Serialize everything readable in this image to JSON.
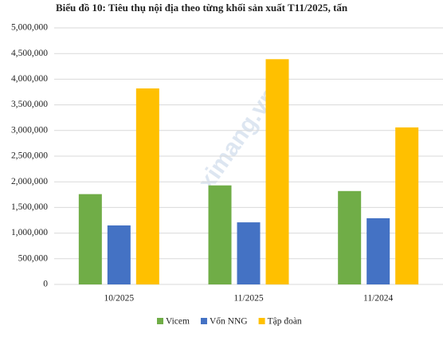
{
  "chart_data": {
    "type": "bar",
    "title": "Biểu đồ 10: Tiêu thụ nội địa theo từng khối sản xuất T11/2025, tấn",
    "watermark": "ximang.vn",
    "categories": [
      "10/2025",
      "11/2025",
      "11/2024"
    ],
    "series": [
      {
        "name": "Vicem",
        "color": "#70ad47",
        "values": [
          1760000,
          1930000,
          1820000
        ]
      },
      {
        "name": "Vốn NNG",
        "color": "#4472c4",
        "values": [
          1150000,
          1210000,
          1290000
        ]
      },
      {
        "name": "Tập đoàn",
        "color": "#ffc000",
        "values": [
          3820000,
          4390000,
          3060000
        ]
      }
    ],
    "ylim": [
      0,
      5000000
    ],
    "yticks": [
      0,
      {
        "value": 500000,
        "label": "500,000"
      },
      {
        "value": 1000000,
        "label": "1,000,000"
      },
      {
        "value": 1500000,
        "label": "1,500,000"
      },
      {
        "value": 2000000,
        "label": "2,000,000"
      },
      {
        "value": 2500000,
        "label": "2,500,000"
      },
      {
        "value": 3000000,
        "label": "3,000,000"
      },
      {
        "value": 3500000,
        "label": "3,500,000"
      },
      {
        "value": 4000000,
        "label": "4,000,000"
      },
      {
        "value": 4500000,
        "label": "4,500,000"
      },
      {
        "value": 5000000,
        "label": "5,000,000"
      }
    ],
    "grid": true,
    "legend": "bottom"
  }
}
